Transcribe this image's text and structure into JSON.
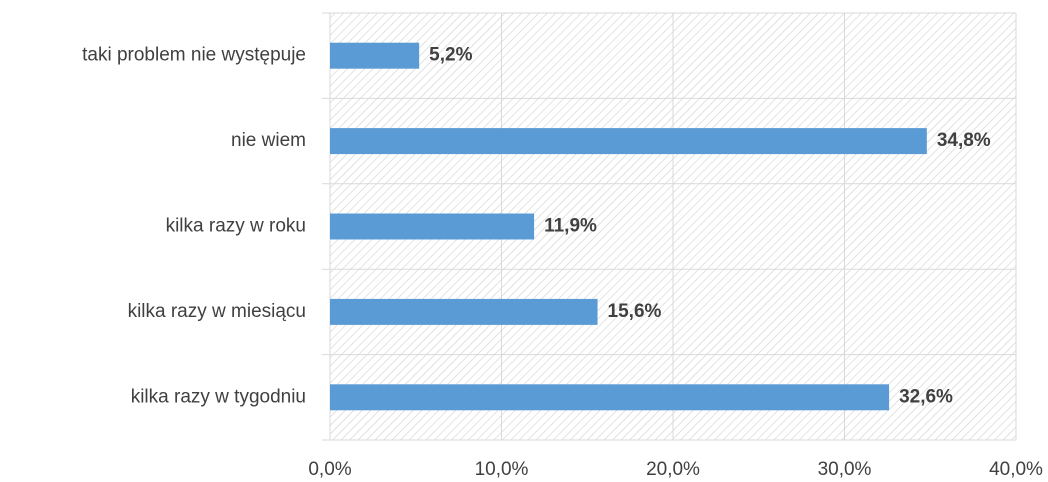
{
  "chart_data": {
    "type": "bar",
    "orientation": "horizontal",
    "categories": [
      "taki problem nie występuje",
      "nie wiem",
      "kilka razy w roku",
      "kilka razy w miesiącu",
      "kilka razy w tygodniu"
    ],
    "values": [
      5.2,
      34.8,
      11.9,
      15.6,
      32.6
    ],
    "value_labels": [
      "5,2%",
      "34,8%",
      "11,9%",
      "15,6%",
      "32,6%"
    ],
    "color": "#5b9bd5",
    "xlim": [
      0,
      40
    ],
    "xticks": [
      {
        "value": 0,
        "label": "0,0%"
      },
      {
        "value": 10,
        "label": "10,0%"
      },
      {
        "value": 20,
        "label": "20,0%"
      },
      {
        "value": 30,
        "label": "30,0%"
      },
      {
        "value": 40,
        "label": "40,0%"
      }
    ],
    "grid": true
  }
}
